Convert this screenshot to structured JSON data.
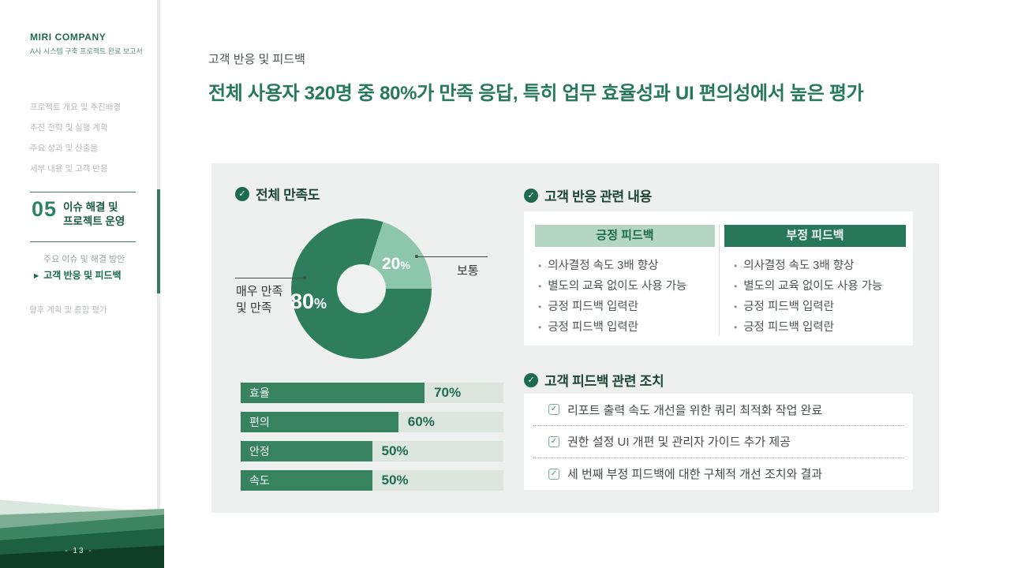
{
  "icons": {
    "check_circle": "✓",
    "checkbox_check": "✓",
    "arrow_right": "▶",
    "bullet": "•"
  },
  "colors": {
    "accent_green": "#26795a",
    "donut_dark": "#2e7d5b",
    "donut_light": "#8cc7ab",
    "bar_fill": "#37835f",
    "positive_header_bg": "#b5d6c3",
    "negative_header_bg": "#27775a",
    "panel_bg": "#edf0ee"
  },
  "sidebar": {
    "company": "MIRI COMPANY",
    "subtitle": "A사 시스템 구축 프로젝트 완료 보고서",
    "toc": [
      "프로젝트 개요 및 추진배경",
      "추진 전략 및 실행 계획",
      "주요 성과 및 산출물",
      "세부 내용 및 고객 반응"
    ],
    "active_section": {
      "number": "05",
      "title_lines": [
        "이슈 해결 및",
        "프로젝트 운영"
      ],
      "sub_item": "주요 이슈 및 해결 방안",
      "current_item": "고객 반응 및 피드백"
    },
    "toc_after": "향후 계획 및 종합 평가",
    "page_number": "- 13 -"
  },
  "header": {
    "eyebrow": "고객 반응 및 피드백",
    "title": "전체 사용자 320명 중 80%가 만족 응답, 특히 업무 효율성과 UI 편의성에서 높은 평가"
  },
  "main": {
    "satisfaction": {
      "title": "전체 만족도",
      "donut_labels": {
        "big_value": "80",
        "big_unit": "%",
        "small_value": "20",
        "small_unit": "%",
        "left_lines": [
          "매우 만족",
          "및 만족"
        ],
        "right_label": "보통"
      },
      "bars": [
        {
          "label": "효율",
          "value_label": "70%"
        },
        {
          "label": "편의",
          "value_label": "60%"
        },
        {
          "label": "안정",
          "value_label": "50%"
        },
        {
          "label": "속도",
          "value_label": "50%"
        }
      ]
    },
    "feedback": {
      "title": "고객 반응 관련 내용",
      "columns": [
        {
          "header": "긍정 피드백",
          "items": [
            "의사결정 속도 3배 향상",
            "별도의 교육 없이도 사용 가능",
            "긍정 피드백 입력란",
            "긍정 피드백 입력란"
          ]
        },
        {
          "header": "부정 피드백",
          "items": [
            "의사결정 속도 3배 향상",
            "별도의 교육 없이도 사용 가능",
            "긍정 피드백 입력란",
            "긍정 피드백 입력란"
          ]
        }
      ]
    },
    "actions": {
      "title": "고객 피드백 관련 조치",
      "items": [
        "리포트 출력 속도 개선을 위한 쿼리 최적화 작업 완료",
        "권한 설정 UI 개편 및 관리자 가이드 추가 제공",
        "세 번째 부정 피드백에 대한 구체적 개선 조치와 결과"
      ]
    }
  },
  "chart_data": [
    {
      "type": "pie",
      "donut": true,
      "title": "전체 만족도",
      "labels": [
        "매우 만족 및 만족",
        "보통"
      ],
      "values": [
        80,
        20
      ],
      "unit": "%",
      "colors": [
        "#2e7d5b",
        "#8cc7ab"
      ],
      "data_labels": [
        "80%",
        "20%"
      ]
    },
    {
      "type": "bar",
      "orientation": "horizontal",
      "title": "",
      "categories": [
        "효율",
        "편의",
        "안정",
        "속도"
      ],
      "values": [
        70,
        60,
        50,
        50
      ],
      "unit": "%",
      "xlim": [
        0,
        100
      ],
      "grid": false
    }
  ]
}
